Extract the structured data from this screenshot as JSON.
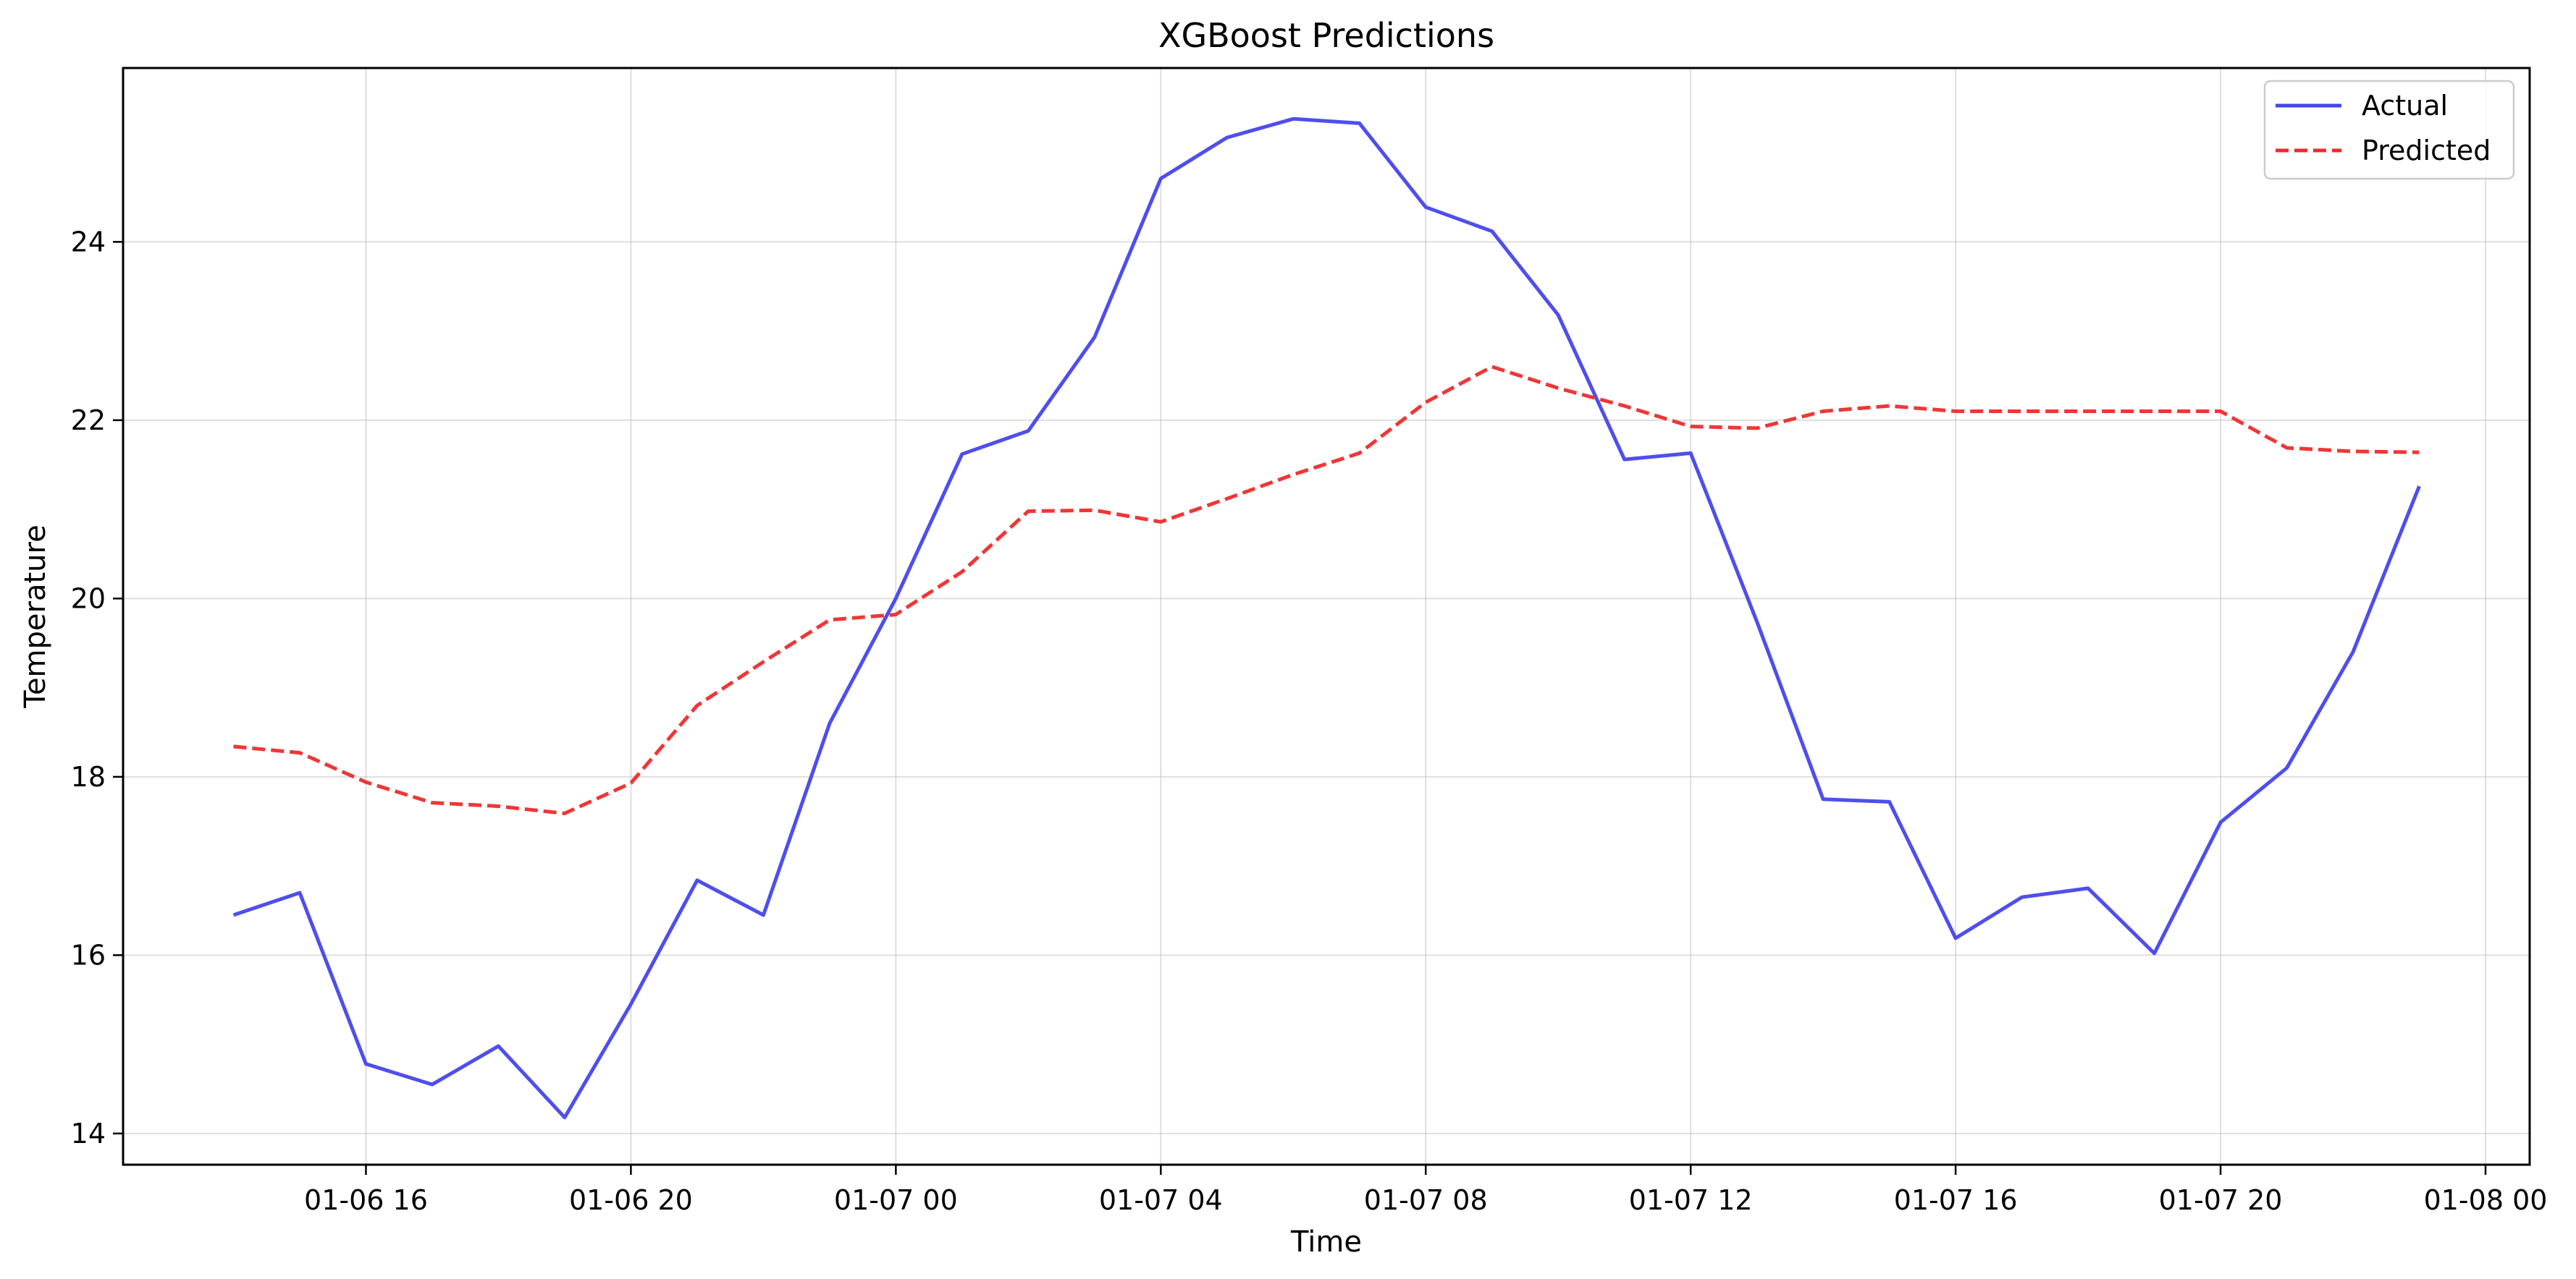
{
  "chart_data": {
    "type": "line",
    "title": "XGBoost Predictions",
    "xlabel": "Time",
    "ylabel": "Temperature",
    "x_tick_labels": [
      "01-06 16",
      "01-06 20",
      "01-07 00",
      "01-07 04",
      "01-07 08",
      "01-07 12",
      "01-07 16",
      "01-07 20",
      "01-08 00"
    ],
    "y_tick_labels": [
      "14",
      "16",
      "18",
      "20",
      "22",
      "24"
    ],
    "x_ticks": [
      "2024-01-06 16:00",
      "2024-01-06 20:00",
      "2024-01-07 00:00",
      "2024-01-07 04:00",
      "2024-01-07 08:00",
      "2024-01-07 12:00",
      "2024-01-07 16:00",
      "2024-01-07 20:00",
      "2024-01-08 00:00"
    ],
    "y_ticks": [
      14,
      16,
      18,
      20,
      22,
      24
    ],
    "xlim": [
      "2024-01-06 12:20",
      "2024-01-08 00:40"
    ],
    "ylim": [
      13.65,
      25.95
    ],
    "grid": true,
    "legend_position": "top-right",
    "x": [
      "2024-01-06 14:00",
      "2024-01-06 15:00",
      "2024-01-06 16:00",
      "2024-01-06 17:00",
      "2024-01-06 18:00",
      "2024-01-06 19:00",
      "2024-01-06 20:00",
      "2024-01-06 21:00",
      "2024-01-06 22:00",
      "2024-01-06 23:00",
      "2024-01-07 00:00",
      "2024-01-07 01:00",
      "2024-01-07 02:00",
      "2024-01-07 03:00",
      "2024-01-07 04:00",
      "2024-01-07 05:00",
      "2024-01-07 06:00",
      "2024-01-07 07:00",
      "2024-01-07 08:00",
      "2024-01-07 09:00",
      "2024-01-07 10:00",
      "2024-01-07 11:00",
      "2024-01-07 12:00",
      "2024-01-07 13:00",
      "2024-01-07 14:00",
      "2024-01-07 15:00",
      "2024-01-07 16:00",
      "2024-01-07 17:00",
      "2024-01-07 18:00",
      "2024-01-07 19:00",
      "2024-01-07 20:00",
      "2024-01-07 21:00",
      "2024-01-07 22:00",
      "2024-01-07 23:00"
    ],
    "series": [
      {
        "name": "Actual",
        "color": "#4444ee",
        "style": "solid",
        "values": [
          16.45,
          16.7,
          14.78,
          14.55,
          14.98,
          14.18,
          15.45,
          16.84,
          16.45,
          18.6,
          20.0,
          21.62,
          21.88,
          22.93,
          24.71,
          25.17,
          25.38,
          25.33,
          24.39,
          24.12,
          23.18,
          21.56,
          21.63,
          19.74,
          17.75,
          17.72,
          16.19,
          16.65,
          16.75,
          16.02,
          17.49,
          18.1,
          19.4,
          21.26
        ]
      },
      {
        "name": "Predicted",
        "color": "#ee2b2b",
        "style": "dashed",
        "values": [
          18.34,
          18.27,
          17.94,
          17.71,
          17.67,
          17.59,
          17.93,
          18.8,
          19.29,
          19.76,
          19.82,
          20.3,
          20.98,
          20.99,
          20.86,
          21.12,
          21.39,
          21.63,
          22.2,
          22.6,
          22.36,
          22.16,
          21.93,
          21.91,
          22.1,
          22.16,
          22.1,
          22.1,
          22.1,
          22.1,
          22.1,
          21.69,
          21.65,
          21.64
        ]
      }
    ]
  }
}
